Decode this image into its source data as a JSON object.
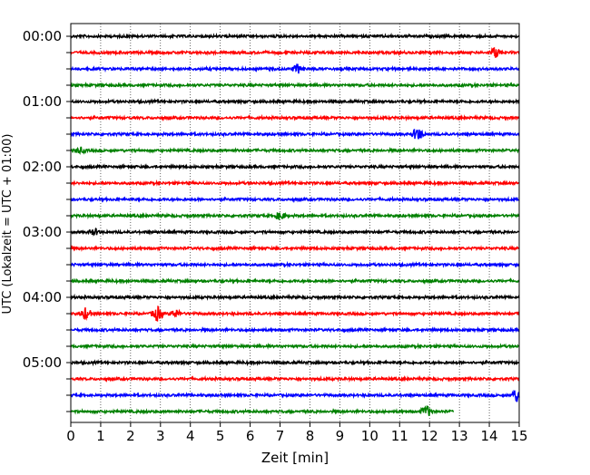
{
  "chart_data": {
    "type": "line",
    "title": "",
    "xlabel": "Zeit  [min]",
    "ylabel": "UTC (Lokalzeit = UTC + 01:00)",
    "x_ticks": [
      0,
      1,
      2,
      3,
      4,
      5,
      6,
      7,
      8,
      9,
      10,
      11,
      12,
      13,
      14,
      15
    ],
    "y_tick_labels": [
      "00:00",
      "01:00",
      "02:00",
      "03:00",
      "04:00",
      "05:00"
    ],
    "xlim": [
      0,
      15
    ],
    "grid": "vertical dotted",
    "legend": "none",
    "trace_interval_minutes": 15,
    "trace_count": 24,
    "color_cycle": [
      "#000000",
      "#ff0000",
      "#0000ff",
      "#008000"
    ],
    "last_trace_end_minute": 12.8,
    "events": [
      {
        "trace": 1,
        "minute": 14.2,
        "amplitude": 6
      },
      {
        "trace": 2,
        "minute": 7.6,
        "amplitude": 5
      },
      {
        "trace": 6,
        "minute": 11.6,
        "amplitude": 7
      },
      {
        "trace": 7,
        "minute": 0.3,
        "amplitude": 3
      },
      {
        "trace": 11,
        "minute": 7.0,
        "amplitude": 4
      },
      {
        "trace": 12,
        "minute": 0.8,
        "amplitude": 3
      },
      {
        "trace": 17,
        "minute": 0.5,
        "amplitude": 6
      },
      {
        "trace": 17,
        "minute": 2.9,
        "amplitude": 8
      },
      {
        "trace": 17,
        "minute": 3.5,
        "amplitude": 4
      },
      {
        "trace": 22,
        "minute": 14.9,
        "amplitude": 7
      },
      {
        "trace": 23,
        "minute": 11.9,
        "amplitude": 6
      }
    ]
  }
}
